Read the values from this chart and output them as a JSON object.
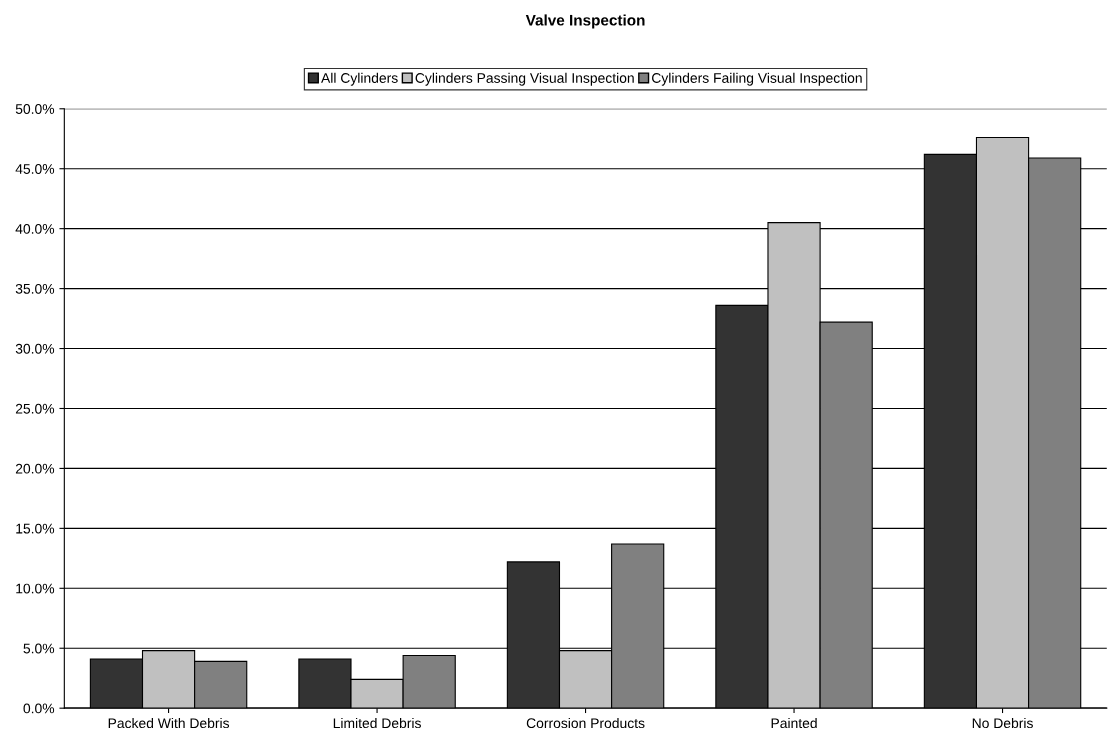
{
  "chart_data": {
    "type": "bar",
    "title": "Valve Inspection",
    "categories": [
      "Packed With Debris",
      "Limited Debris",
      "Corrosion Products",
      "Painted",
      "No Debris"
    ],
    "series": [
      {
        "name": "All Cylinders",
        "color": "#333333",
        "values": [
          4.1,
          4.1,
          12.2,
          33.6,
          46.2
        ]
      },
      {
        "name": "Cylinders Passing Visual Inspection",
        "color": "#c0c0c0",
        "values": [
          4.8,
          2.4,
          4.8,
          40.5,
          47.6
        ]
      },
      {
        "name": "Cylinders Failing Visual Inspection",
        "color": "#808080",
        "values": [
          3.9,
          4.4,
          13.7,
          32.2,
          45.9
        ]
      }
    ],
    "ylim": [
      0,
      50
    ],
    "yticks": [
      {
        "value": 0,
        "label": "0.0%"
      },
      {
        "value": 5,
        "label": "5.0%"
      },
      {
        "value": 10,
        "label": "10.0%"
      },
      {
        "value": 15,
        "label": "15.0%"
      },
      {
        "value": 20,
        "label": "20.0%"
      },
      {
        "value": 25,
        "label": "25.0%"
      },
      {
        "value": 30,
        "label": "30.0%"
      },
      {
        "value": 35,
        "label": "35.0%"
      },
      {
        "value": 40,
        "label": "40.0%"
      },
      {
        "value": 45,
        "label": "45.0%"
      },
      {
        "value": 50,
        "label": "50.0%"
      }
    ],
    "grid": "y",
    "legend": "top"
  }
}
